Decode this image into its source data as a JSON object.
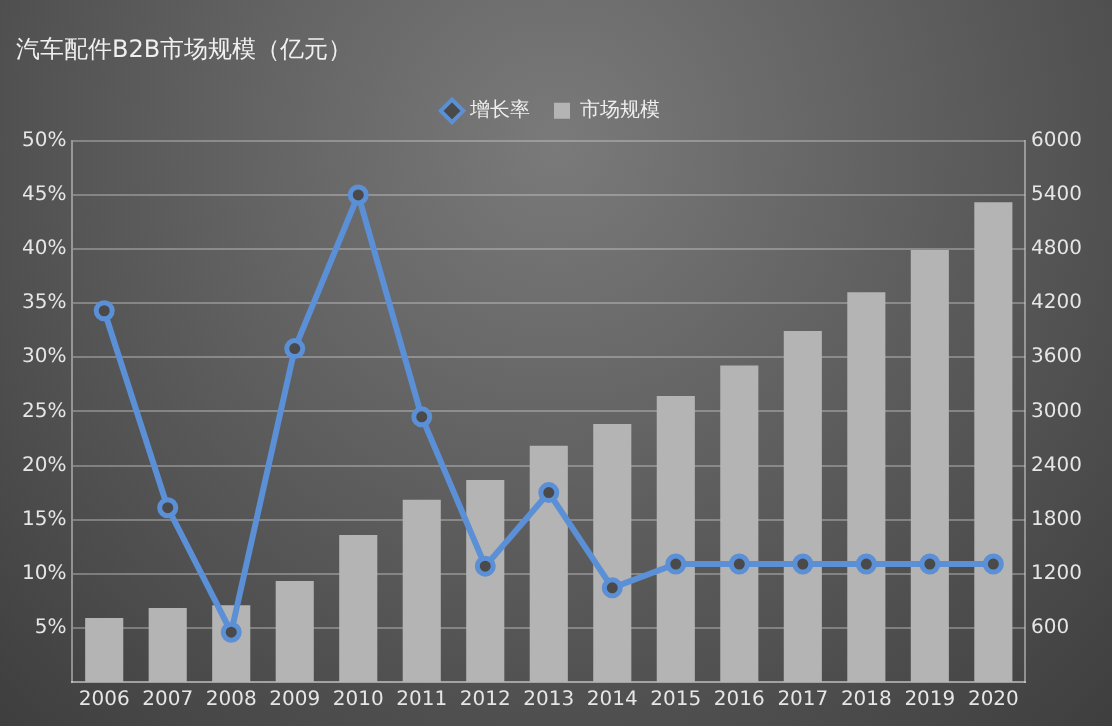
{
  "chart_data": {
    "type": "bar",
    "title": "汽车配件B2B市场规模（亿元）",
    "categories": [
      "2006",
      "2007",
      "2008",
      "2009",
      "2010",
      "2011",
      "2012",
      "2013",
      "2014",
      "2015",
      "2016",
      "2017",
      "2018",
      "2019",
      "2020"
    ],
    "series": [
      {
        "name": "增长率",
        "type": "line",
        "axis": "y",
        "color": "#5b8fd6",
        "values": [
          34.3,
          16.1,
          4.6,
          30.8,
          45,
          24.5,
          10.7,
          17.5,
          8.7,
          10.9,
          10.9,
          10.9,
          10.9,
          10.9,
          10.9
        ]
      },
      {
        "name": "市场规模",
        "axis": "y2",
        "color": "#b4b4b4",
        "values": [
          710,
          820,
          850,
          1120,
          1630,
          2020,
          2240,
          2620,
          2860,
          3170,
          3510,
          3890,
          4320,
          4790,
          5320
        ]
      }
    ],
    "ylim": [
      0,
      50
    ],
    "yticks": [
      {
        "value": 5,
        "label": "5%"
      },
      {
        "value": 10,
        "label": "10%"
      },
      {
        "value": 15,
        "label": "15%"
      },
      {
        "value": 20,
        "label": "20%"
      },
      {
        "value": 25,
        "label": "25%"
      },
      {
        "value": 30,
        "label": "30%"
      },
      {
        "value": 35,
        "label": "35%"
      },
      {
        "value": 40,
        "label": "40%"
      },
      {
        "value": 45,
        "label": "45%"
      },
      {
        "value": 50,
        "label": "50%"
      }
    ],
    "y2lim": [
      0,
      6000
    ],
    "y2ticks": [
      600,
      1200,
      1800,
      2400,
      3000,
      3600,
      4200,
      4800,
      5400,
      6000
    ],
    "grid": "y",
    "legend": "top",
    "marker": "circle",
    "line_style": "solid"
  }
}
